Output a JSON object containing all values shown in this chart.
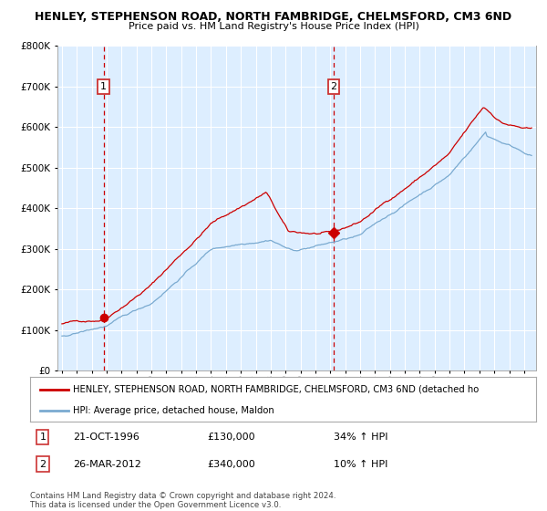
{
  "title": "HENLEY, STEPHENSON ROAD, NORTH FAMBRIDGE, CHELMSFORD, CM3 6ND",
  "subtitle": "Price paid vs. HM Land Registry's House Price Index (HPI)",
  "legend_line1": "HENLEY, STEPHENSON ROAD, NORTH FAMBRIDGE, CHELMSFORD, CM3 6ND (detached ho",
  "legend_line2": "HPI: Average price, detached house, Maldon",
  "annotation1": {
    "label": "1",
    "date": "21-OCT-1996",
    "price": "£130,000",
    "hpi": "34% ↑ HPI",
    "x_year": 1996.8,
    "y_val": 130000
  },
  "annotation2": {
    "label": "2",
    "date": "26-MAR-2012",
    "price": "£340,000",
    "hpi": "10% ↑ HPI",
    "x_year": 2012.23,
    "y_val": 340000
  },
  "vline1_x": 1996.8,
  "vline2_x": 2012.23,
  "footer": "Contains HM Land Registry data © Crown copyright and database right 2024.\nThis data is licensed under the Open Government Licence v3.0.",
  "ylim": [
    0,
    800000
  ],
  "xlim_start": 1993.7,
  "xlim_end": 2025.8,
  "red_color": "#cc0000",
  "blue_color": "#7aaad0",
  "bg_color": "#ddeeff",
  "grid_color": "#ffffff",
  "vline_color": "#cc0000"
}
